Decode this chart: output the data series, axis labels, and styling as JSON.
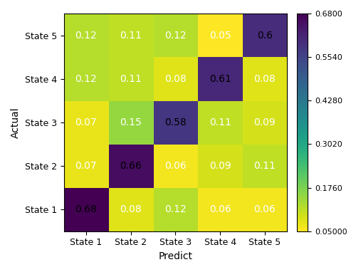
{
  "matrix": [
    [
      0.68,
      0.08,
      0.12,
      0.06,
      0.06
    ],
    [
      0.07,
      0.66,
      0.06,
      0.09,
      0.11
    ],
    [
      0.07,
      0.15,
      0.58,
      0.11,
      0.09
    ],
    [
      0.12,
      0.11,
      0.08,
      0.61,
      0.08
    ],
    [
      0.12,
      0.11,
      0.12,
      0.05,
      0.6
    ]
  ],
  "row_labels": [
    "State 1",
    "State 2",
    "State 3",
    "State 4",
    "State 5"
  ],
  "col_labels": [
    "State 1",
    "State 2",
    "State 3",
    "State 4",
    "State 5"
  ],
  "xlabel": "Predict",
  "ylabel": "Actual",
  "colorbar_ticks": [
    0.05,
    0.176,
    0.302,
    0.428,
    0.554,
    0.68
  ],
  "colorbar_tick_labels": [
    "0.05000",
    "0.1760",
    "0.3020",
    "0.4280",
    "0.5540",
    "0.6800"
  ],
  "vmin": 0.05,
  "vmax": 0.68,
  "cmap": "viridis_r",
  "font_size_cell": 10,
  "font_size_label": 9,
  "font_size_axis_label": 10
}
